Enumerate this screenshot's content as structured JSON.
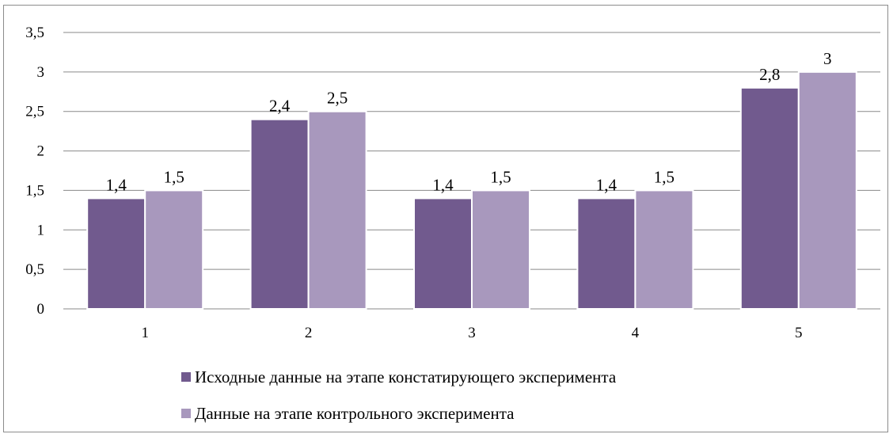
{
  "chart_data": {
    "type": "bar",
    "categories": [
      "1",
      "2",
      "3",
      "4",
      "5"
    ],
    "series": [
      {
        "name": "Исходные данные на этапе констатирующего эксперимента",
        "values": [
          1.4,
          2.4,
          1.4,
          1.4,
          2.8
        ],
        "labels": [
          "1,4",
          "2,4",
          "1,4",
          "1,4",
          "2,8"
        ],
        "color": "#715a8e"
      },
      {
        "name": "Данные на этапе контрольного эксперимента",
        "values": [
          1.5,
          2.5,
          1.5,
          1.5,
          3
        ],
        "labels": [
          "1,5",
          "2,5",
          "1,5",
          "1,5",
          "3"
        ],
        "color": "#a898bd"
      }
    ],
    "yticks": [
      {
        "v": 0,
        "t": "0"
      },
      {
        "v": 0.5,
        "t": "0,5"
      },
      {
        "v": 1,
        "t": "1"
      },
      {
        "v": 1.5,
        "t": "1,5"
      },
      {
        "v": 2,
        "t": "2"
      },
      {
        "v": 2.5,
        "t": "2,5"
      },
      {
        "v": 3,
        "t": "3"
      },
      {
        "v": 3.5,
        "t": "3,5"
      }
    ],
    "ylim": [
      0,
      3.5
    ],
    "grid": true,
    "legend": "bottom-left",
    "title": "",
    "xlabel": "",
    "ylabel": ""
  }
}
